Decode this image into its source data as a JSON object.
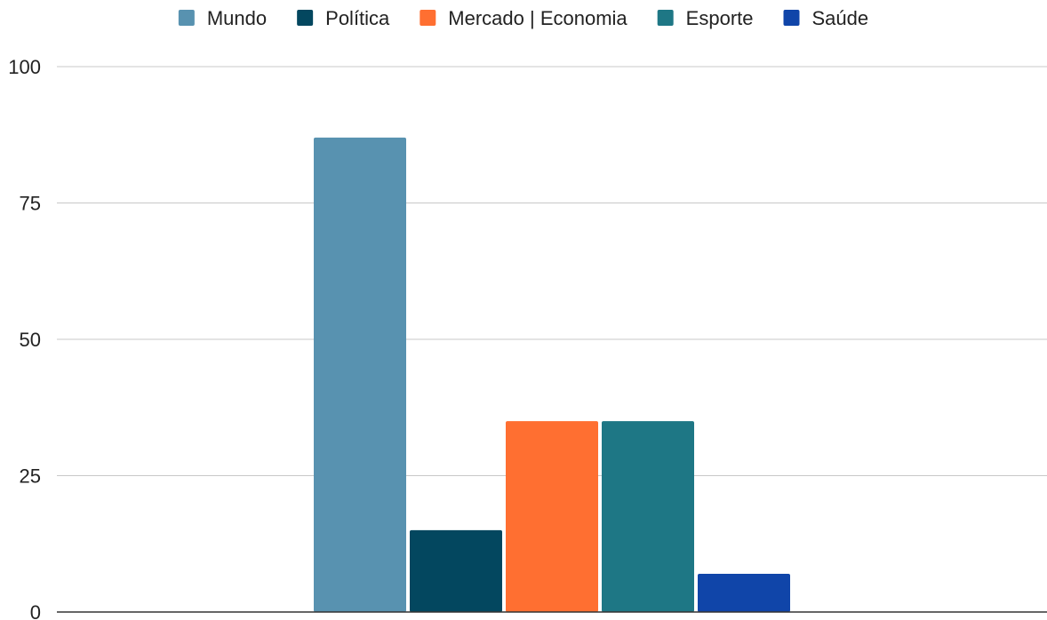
{
  "chart_data": {
    "type": "bar",
    "title": "",
    "xlabel": "",
    "ylabel": "",
    "categories": [
      ""
    ],
    "series": [
      {
        "name": "Mundo",
        "values": [
          87
        ],
        "color": "#5892b0"
      },
      {
        "name": "Política",
        "values": [
          15
        ],
        "color": "#03475f"
      },
      {
        "name": "Mercado | Economia",
        "values": [
          35
        ],
        "color": "#ff6f31"
      },
      {
        "name": "Esporte",
        "values": [
          35
        ],
        "color": "#1e7785"
      },
      {
        "name": "Saúde",
        "values": [
          7
        ],
        "color": "#1045a9"
      }
    ],
    "ylim": [
      0,
      100
    ],
    "yticks": [
      "0",
      "25",
      "50",
      "75",
      "100"
    ],
    "grid": true,
    "legend_position": "top"
  }
}
